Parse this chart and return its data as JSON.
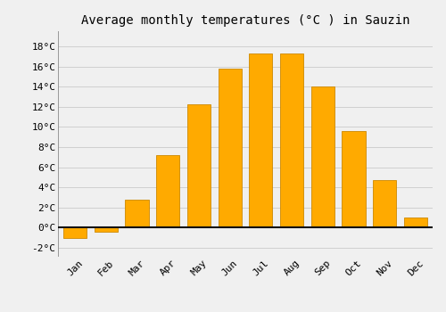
{
  "months": [
    "Jan",
    "Feb",
    "Mar",
    "Apr",
    "May",
    "Jun",
    "Jul",
    "Aug",
    "Sep",
    "Oct",
    "Nov",
    "Dec"
  ],
  "temperatures": [
    -1.0,
    -0.4,
    2.8,
    7.2,
    12.2,
    15.8,
    17.3,
    17.3,
    14.0,
    9.6,
    4.7,
    1.0
  ],
  "bar_color": "#FFAA00",
  "bar_edge_color": "#CC8800",
  "title": "Average monthly temperatures (°C ) in Sauzin",
  "title_fontsize": 10,
  "ylim": [
    -2.8,
    19.5
  ],
  "yticks": [
    -2,
    0,
    2,
    4,
    6,
    8,
    10,
    12,
    14,
    16,
    18
  ],
  "background_color": "#f0f0f0",
  "grid_color": "#d0d0d0",
  "tick_label_fontsize": 8,
  "zero_line_color": "#111111",
  "bar_width": 0.75
}
